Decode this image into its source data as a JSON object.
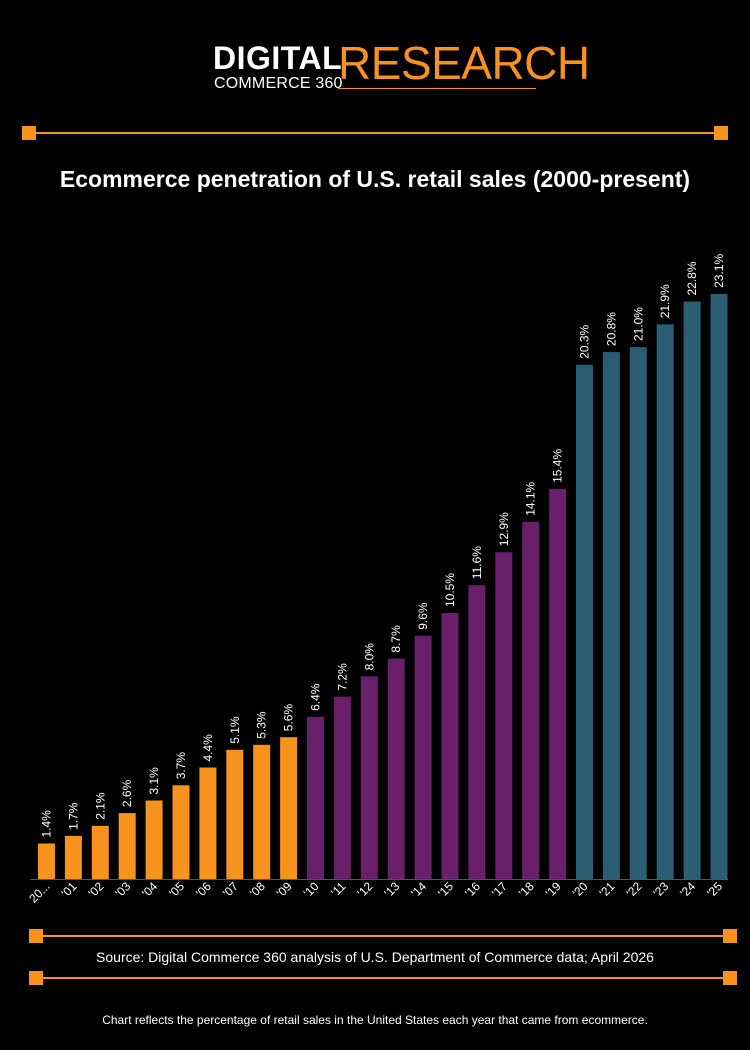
{
  "brand": {
    "digital": "DIGITAL",
    "commerce": "COMMERCE 360",
    "research": "RESEARCH"
  },
  "colors": {
    "accent": "#f7921e",
    "orange_series": "#f7921e",
    "purple_series": "#6a1f6a",
    "teal_series": "#2b5d75",
    "background": "#000000"
  },
  "chart_data": {
    "type": "bar",
    "title": "Ecommerce penetration of U.S. retail sales (2000-present)",
    "xlabel": "",
    "ylabel": "",
    "ylim": [
      0,
      25
    ],
    "categories": [
      "20...",
      "'01",
      "'02",
      "'03",
      "'04",
      "'05",
      "'06",
      "'07",
      "'08",
      "'09",
      "'10",
      "'11",
      "'12",
      "'13",
      "'14",
      "'15",
      "'16",
      "'17",
      "'18",
      "'19",
      "'20",
      "'21",
      "'22",
      "'23",
      "'24",
      "'25"
    ],
    "values": [
      1.4,
      1.7,
      2.1,
      2.6,
      3.1,
      3.7,
      4.4,
      5.1,
      5.3,
      5.6,
      6.4,
      7.2,
      8.0,
      8.7,
      9.6,
      10.5,
      11.6,
      12.9,
      14.1,
      15.4,
      20.3,
      20.8,
      21.0,
      21.9,
      22.8,
      23.1
    ],
    "labels": [
      "1.4%",
      "1.7%",
      "2.1%",
      "2.6%",
      "3.1%",
      "3.7%",
      "4.4%",
      "5.1%",
      "5.3%",
      "5.6%",
      "6.4%",
      "7.2%",
      "8.0%",
      "8.7%",
      "9.6%",
      "10.5%",
      "11.6%",
      "12.9%",
      "14.1%",
      "15.4%",
      "20.3%",
      "20.8%",
      "21.0%",
      "21.9%",
      "22.8%",
      "23.1%"
    ],
    "color_groups": [
      "orange",
      "orange",
      "orange",
      "orange",
      "orange",
      "orange",
      "orange",
      "orange",
      "orange",
      "orange",
      "purple",
      "purple",
      "purple",
      "purple",
      "purple",
      "purple",
      "purple",
      "purple",
      "purple",
      "purple",
      "teal",
      "teal",
      "teal",
      "teal",
      "teal",
      "teal"
    ],
    "grid": false
  },
  "source": "Source: Digital Commerce 360 analysis of U.S. Department of Commerce data; April 2026",
  "footnote": "Chart reflects the percentage of retail sales in the United States each year that came from ecommerce."
}
